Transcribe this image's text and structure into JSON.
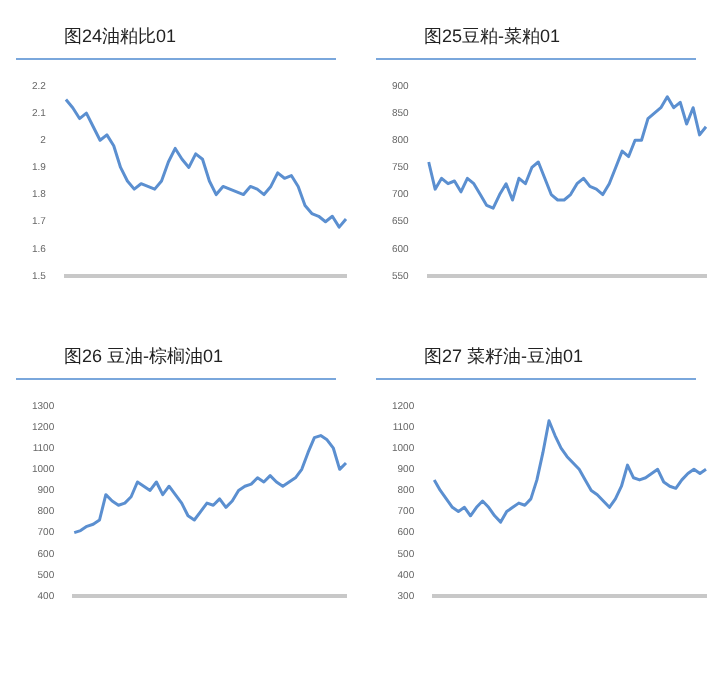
{
  "chart_data": [
    {
      "type": "line",
      "title": "图24油粕比01",
      "categories": [
        null,
        null,
        null,
        null,
        null,
        null,
        null,
        null,
        null,
        null,
        null,
        null,
        null,
        null,
        null,
        null,
        null,
        null,
        null,
        null,
        null,
        null,
        null,
        null,
        null,
        null,
        null,
        null,
        null,
        null,
        null,
        null,
        null,
        null,
        null,
        null,
        null,
        null,
        null,
        null,
        null,
        null
      ],
      "series": [
        {
          "color": "#5b8fd0",
          "values": [
            2.15,
            2.12,
            2.08,
            2.1,
            2.05,
            2.0,
            2.02,
            1.98,
            1.9,
            1.85,
            1.82,
            1.84,
            1.83,
            1.82,
            1.85,
            1.92,
            1.97,
            1.93,
            1.9,
            1.95,
            1.93,
            1.85,
            1.8,
            1.83,
            1.82,
            1.81,
            1.8,
            1.83,
            1.82,
            1.8,
            1.83,
            1.88,
            1.86,
            1.87,
            1.83,
            1.76,
            1.73,
            1.72,
            1.7,
            1.72,
            1.68,
            1.71
          ]
        }
      ],
      "ylim": [
        1.5,
        2.2
      ],
      "yticks": [
        1.5,
        1.6,
        1.7,
        1.8,
        1.9,
        2,
        2.1,
        2.2
      ],
      "grid": false
    },
    {
      "type": "line",
      "title": "图25豆粕-菜粕01",
      "categories": [
        null,
        null,
        null,
        null,
        null,
        null,
        null,
        null,
        null,
        null,
        null,
        null,
        null,
        null,
        null,
        null,
        null,
        null,
        null,
        null,
        null,
        null,
        null,
        null,
        null,
        null,
        null,
        null,
        null,
        null,
        null,
        null,
        null,
        null,
        null,
        null,
        null,
        null,
        null,
        null,
        null,
        null,
        null,
        null
      ],
      "series": [
        {
          "color": "#5b8fd0",
          "values": [
            760,
            710,
            730,
            720,
            725,
            705,
            730,
            720,
            700,
            680,
            675,
            700,
            720,
            690,
            730,
            720,
            750,
            760,
            730,
            700,
            690,
            690,
            700,
            720,
            730,
            715,
            710,
            700,
            720,
            750,
            780,
            770,
            800,
            800,
            840,
            850,
            860,
            880,
            860,
            870,
            830,
            860,
            810,
            825
          ]
        }
      ],
      "ylim": [
        550,
        900
      ],
      "yticks": [
        550,
        600,
        650,
        700,
        750,
        800,
        850,
        900
      ],
      "grid": false
    },
    {
      "type": "line",
      "title": "图26 豆油-棕榈油01",
      "categories": [
        null,
        null,
        null,
        null,
        null,
        null,
        null,
        null,
        null,
        null,
        null,
        null,
        null,
        null,
        null,
        null,
        null,
        null,
        null,
        null,
        null,
        null,
        null,
        null,
        null,
        null,
        null,
        null,
        null,
        null,
        null,
        null,
        null,
        null,
        null,
        null,
        null,
        null,
        null,
        null,
        null,
        null,
        null,
        null
      ],
      "series": [
        {
          "color": "#5b8fd0",
          "values": [
            700,
            710,
            730,
            740,
            760,
            880,
            850,
            830,
            840,
            870,
            940,
            920,
            900,
            940,
            880,
            920,
            880,
            840,
            780,
            760,
            800,
            840,
            830,
            860,
            820,
            850,
            900,
            920,
            930,
            960,
            940,
            970,
            940,
            920,
            940,
            960,
            1000,
            1080,
            1150,
            1160,
            1140,
            1100,
            1000,
            1030
          ]
        }
      ],
      "ylim": [
        400,
        1300
      ],
      "yticks": [
        400,
        500,
        600,
        700,
        800,
        900,
        1000,
        1100,
        1200,
        1300
      ],
      "grid": false
    },
    {
      "type": "line",
      "title": "图27 菜籽油-豆油01",
      "categories": [
        null,
        null,
        null,
        null,
        null,
        null,
        null,
        null,
        null,
        null,
        null,
        null,
        null,
        null,
        null,
        null,
        null,
        null,
        null,
        null,
        null,
        null,
        null,
        null,
        null,
        null,
        null,
        null,
        null,
        null,
        null,
        null,
        null,
        null,
        null,
        null,
        null,
        null,
        null,
        null,
        null,
        null,
        null,
        null,
        null,
        null
      ],
      "series": [
        {
          "color": "#5b8fd0",
          "values": [
            850,
            800,
            760,
            720,
            700,
            720,
            680,
            720,
            750,
            720,
            680,
            650,
            700,
            720,
            740,
            730,
            760,
            850,
            980,
            1130,
            1060,
            1000,
            960,
            930,
            900,
            850,
            800,
            780,
            750,
            720,
            760,
            820,
            920,
            860,
            850,
            860,
            880,
            900,
            840,
            820,
            810,
            850,
            880,
            900,
            880,
            900
          ]
        }
      ],
      "ylim": [
        300,
        1200
      ],
      "yticks": [
        300,
        400,
        500,
        600,
        700,
        800,
        900,
        1000,
        1100,
        1200
      ],
      "grid": false
    }
  ]
}
